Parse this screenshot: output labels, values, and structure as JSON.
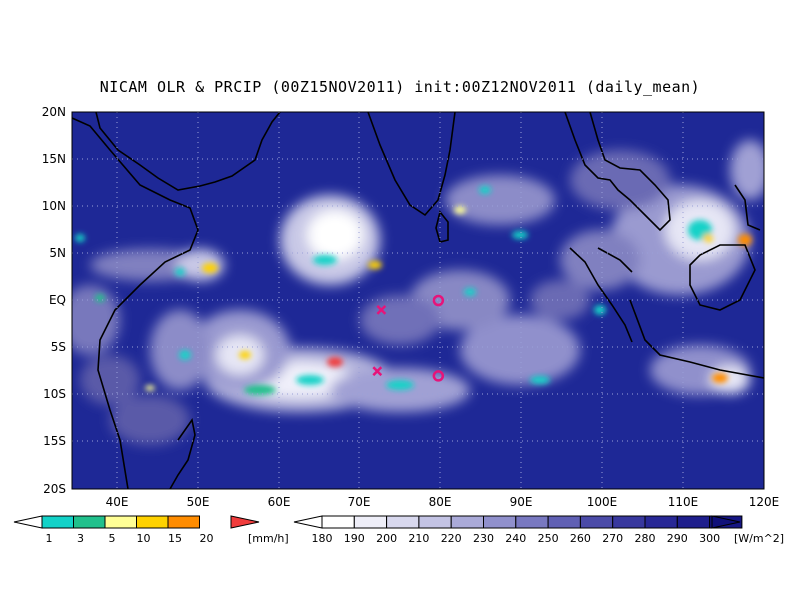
{
  "title": "NICAM OLR & PRCIP (00Z15NOV2011) init:00Z12NOV2011 (daily_mean)",
  "map": {
    "lat_labels": [
      "20N",
      "15N",
      "10N",
      "5N",
      "EQ",
      "5S",
      "10S",
      "15S",
      "20S"
    ],
    "lon_labels": [
      "40E",
      "50E",
      "60E",
      "70E",
      "80E",
      "90E",
      "100E",
      "110E",
      "120E"
    ],
    "lat_range": [
      -20,
      20
    ],
    "lon_range": [
      35,
      120
    ],
    "ocean_color": "#1e2896",
    "grid": "dotted"
  },
  "markers": [
    {
      "type": "cross",
      "lon": 73,
      "lat": -1,
      "color": "#e6147a"
    },
    {
      "type": "circle",
      "lon": 80,
      "lat": 0,
      "color": "#e6147a"
    },
    {
      "type": "cross",
      "lon": 72.5,
      "lat": -7.5,
      "color": "#e6147a"
    },
    {
      "type": "circle",
      "lon": 80,
      "lat": -8,
      "color": "#e6147a"
    }
  ],
  "precip_scale": {
    "unit": "[mm/h]",
    "labels": [
      "1",
      "3",
      "5",
      "10",
      "15",
      "20"
    ],
    "colors": [
      "#12d2c8",
      "#20c08c",
      "#ffff96",
      "#ffd200",
      "#ff8c00",
      "#f03c3c"
    ]
  },
  "olr_scale": {
    "unit": "[W/m^2]",
    "labels": [
      "180",
      "190",
      "200",
      "210",
      "220",
      "230",
      "240",
      "250",
      "260",
      "270",
      "280",
      "290",
      "300"
    ],
    "colors": [
      "#ffffff",
      "#eeeef8",
      "#d8d8ee",
      "#c3c3e4",
      "#aaaad8",
      "#9090cc",
      "#7878c0",
      "#6060b4",
      "#4b4ba8",
      "#38389e",
      "#282896",
      "#1e1e8c",
      "#161684",
      "#10107a"
    ]
  }
}
